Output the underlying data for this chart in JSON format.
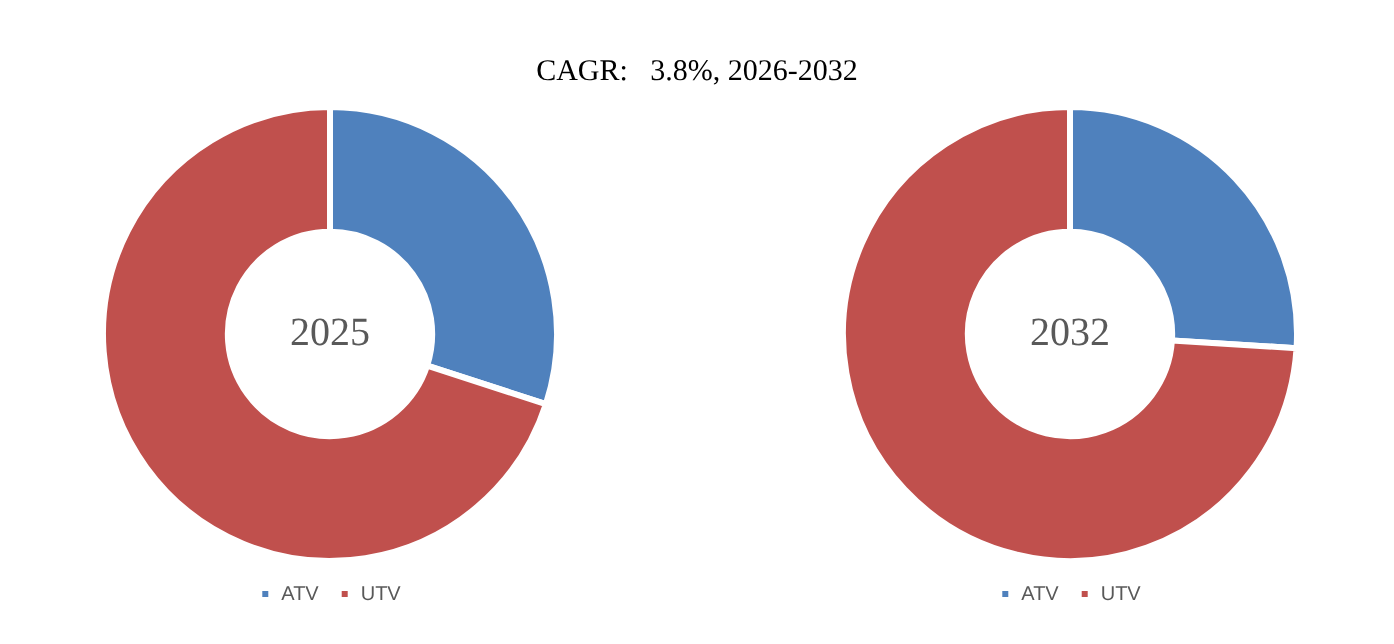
{
  "chart_data": [
    {
      "type": "donut",
      "title": "CAGR:   3.8%, 2026-2032",
      "categories": [
        "ATV",
        "UTV"
      ],
      "values": [
        30,
        70
      ],
      "colors": [
        "#4f81bd",
        "#c0504d"
      ],
      "annotations": [
        "2025"
      ],
      "legend": "bottom"
    },
    {
      "type": "donut",
      "categories": [
        "ATV",
        "UTV"
      ],
      "values": [
        26,
        74
      ],
      "colors": [
        "#4f81bd",
        "#c0504d"
      ],
      "annotations": [
        "2032"
      ],
      "legend": "bottom"
    }
  ]
}
